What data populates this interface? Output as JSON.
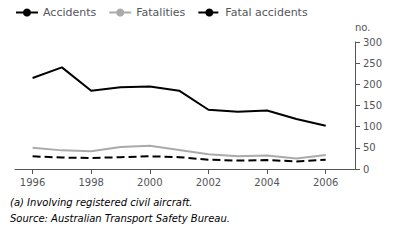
{
  "chart_data": {
    "type": "line",
    "ylabel": "no.",
    "annotations": [
      "(a) Involving registered civil aircraft.",
      "Source: Australian Transport Safety Bureau."
    ],
    "x": [
      1996,
      1997,
      1998,
      1999,
      2000,
      2001,
      2002,
      2003,
      2004,
      2005,
      2006
    ],
    "series": [
      {
        "name": "Accidents",
        "color": "#000000",
        "line_style": "solid",
        "values": [
          215,
          240,
          185,
          193,
          195,
          185,
          140,
          135,
          138,
          118,
          102
        ]
      },
      {
        "name": "Fatalities",
        "color": "#aaaaaa",
        "line_style": "solid",
        "values": [
          50,
          44,
          42,
          52,
          55,
          45,
          35,
          30,
          32,
          25,
          33
        ]
      },
      {
        "name": "Fatal accidents",
        "color": "#000000",
        "line_style": "dashed",
        "values": [
          30,
          27,
          26,
          28,
          30,
          28,
          22,
          20,
          21,
          18,
          22
        ]
      }
    ],
    "xlim": [
      1995.4,
      2007.0
    ],
    "xticks": [
      1996,
      1998,
      2000,
      2002,
      2004,
      2006
    ],
    "ylim": [
      0,
      300
    ],
    "yticks": [
      0,
      50,
      100,
      150,
      200,
      250,
      300
    ],
    "grid": false,
    "legend": "top"
  }
}
